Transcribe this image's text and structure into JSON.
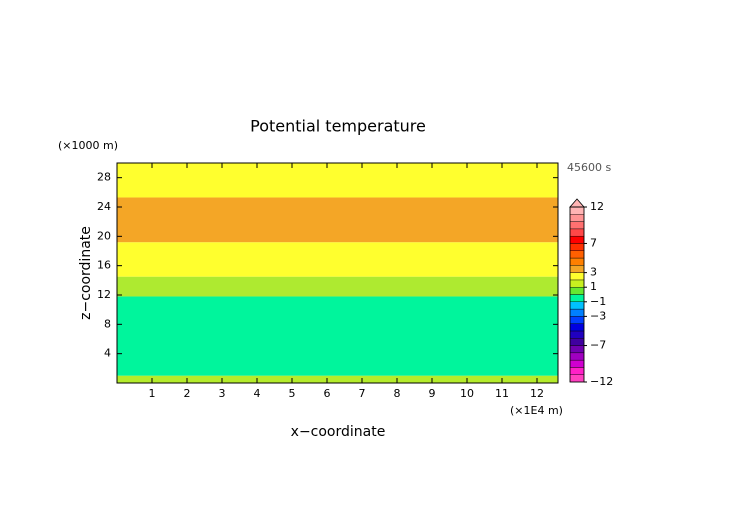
{
  "chart_data": {
    "type": "contour",
    "title": "Potential temperature",
    "xlabel": "x−coordinate",
    "ylabel": "z−coordinate",
    "xunit": "(×1E4 m)",
    "yunit": "(×1000 m)",
    "time_label": "45600 s",
    "xlim": [
      0,
      12.6
    ],
    "ylim": [
      0,
      30
    ],
    "xticks": [
      1,
      2,
      3,
      4,
      5,
      6,
      7,
      8,
      9,
      10,
      11,
      12
    ],
    "yticks": [
      4,
      8,
      12,
      16,
      20,
      24,
      28
    ],
    "bands": [
      {
        "from": 0,
        "to": 1,
        "color": "#b4ec2c"
      },
      {
        "from": 1,
        "to": 11.8,
        "color": "#00f59c"
      },
      {
        "from": 11.8,
        "to": 14.5,
        "color": "#aeea30"
      },
      {
        "from": 14.5,
        "to": 19.2,
        "color": "#ffff2e"
      },
      {
        "from": 19.2,
        "to": 25.3,
        "color": "#f4a626"
      },
      {
        "from": 25.3,
        "to": 30,
        "color": "#ffff2e"
      }
    ],
    "colorbar": {
      "levels": [
        -12,
        -11,
        -10,
        -9,
        -8,
        -7,
        -6,
        -5,
        -4,
        -3,
        -2,
        -1,
        0,
        1,
        2,
        3,
        4,
        5,
        6,
        7,
        8,
        9,
        10,
        11,
        12
      ],
      "colors": [
        "#ff40c0",
        "#ff20c8",
        "#d000d0",
        "#a000c0",
        "#7000b0",
        "#4000a0",
        "#2000c0",
        "#0000e0",
        "#0040ff",
        "#0080ff",
        "#00c0ff",
        "#00f59c",
        "#66e830",
        "#c8f020",
        "#ffff2e",
        "#f4a626",
        "#ff8000",
        "#ff6000",
        "#ff3000",
        "#ff0000",
        "#ff4848",
        "#ff7070",
        "#ff9494",
        "#ffb4b4"
      ],
      "ticks": [
        {
          "value": -12,
          "label": "−12"
        },
        {
          "value": -7,
          "label": "−7"
        },
        {
          "value": -3,
          "label": "−3"
        },
        {
          "value": -1,
          "label": "−1"
        },
        1,
        3,
        7,
        12
      ]
    }
  }
}
